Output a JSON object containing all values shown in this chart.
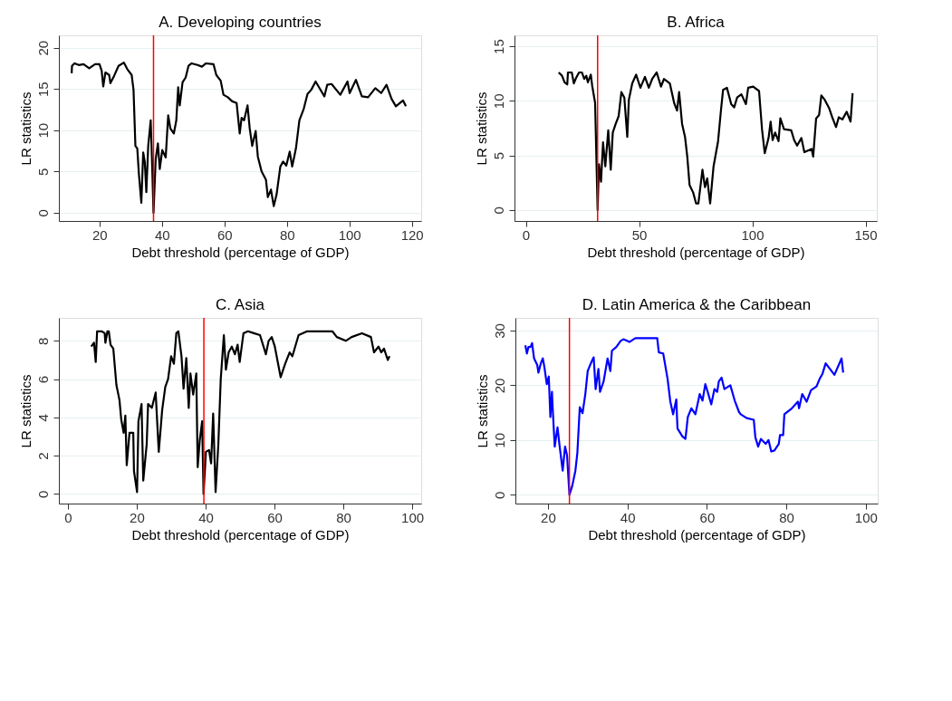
{
  "chart_data": [
    {
      "type": "line",
      "title": "A. Developing countries",
      "xlabel": "Debt threshold (percentage of GDP)",
      "ylabel": "LR statistics",
      "xlim": [
        7,
        123
      ],
      "ylim": [
        -1,
        21.5
      ],
      "xticks": [
        20,
        40,
        60,
        80,
        100,
        120
      ],
      "yticks": [
        0,
        5,
        10,
        15,
        20
      ],
      "grid": "y",
      "ref_lines": [
        {
          "axis": "x",
          "value": 37.3,
          "color": "#ff0000"
        }
      ],
      "series": [
        {
          "color": "#000000",
          "x": [
            11.1,
            11.2,
            12.0,
            13.4,
            14.9,
            16.7,
            18.6,
            20.0,
            20.7,
            21.2,
            21.9,
            23.1,
            23.5,
            24.7,
            26.1,
            27.8,
            28.9,
            30.3,
            30.9,
            31.5,
            32.1,
            32.6,
            33.4,
            34.0,
            34.5,
            35.0,
            35.6,
            36.4,
            36.8,
            37.3,
            38.0,
            38.7,
            39.3,
            40.1,
            41.2,
            42.0,
            42.7,
            43.8,
            44.6,
            45.2,
            45.7,
            46.6,
            47.6,
            48.5,
            49.5,
            51.4,
            52.8,
            54.1,
            56.5,
            57.4,
            58.8,
            59.7,
            61.1,
            62.5,
            63.9,
            64.9,
            65.5,
            66.3,
            67.4,
            68.1,
            68.9,
            70.0,
            70.7,
            71.9,
            73.3,
            73.9,
            74.9,
            75.8,
            76.7,
            77.9,
            78.8,
            79.8,
            80.9,
            81.7,
            82.9,
            84.0,
            85.4,
            86.6,
            87.8,
            89.2,
            90.6,
            92.0,
            92.9,
            94.3,
            97.1,
            99.4,
            100.1,
            102.1,
            104.0,
            106.0,
            108.3,
            110.2,
            111.9,
            113.5,
            114.9,
            117.2,
            118.1
          ],
          "values": [
            16.9,
            17.8,
            18.1,
            17.9,
            18.0,
            17.5,
            18.0,
            18.0,
            17.2,
            15.3,
            17.0,
            16.7,
            15.7,
            16.6,
            17.8,
            18.2,
            17.4,
            16.7,
            14.9,
            8.1,
            7.8,
            4.8,
            1.2,
            7.3,
            6.2,
            2.5,
            8.1,
            11.2,
            6.5,
            0,
            6.5,
            8.4,
            5.3,
            7.6,
            6.7,
            11.8,
            10.2,
            9.6,
            11.2,
            15.2,
            13.0,
            15.8,
            16.4,
            17.8,
            18.1,
            17.9,
            17.7,
            18.1,
            18.0,
            16.7,
            16.0,
            14.3,
            14.0,
            13.5,
            13.3,
            9.6,
            11.5,
            11.2,
            13.0,
            10.2,
            8.1,
            9.9,
            6.8,
            5.0,
            4.0,
            1.9,
            2.8,
            0.8,
            2.2,
            5.6,
            6.2,
            5.7,
            7.4,
            5.6,
            7.8,
            11.2,
            12.6,
            14.4,
            14.9,
            15.9,
            15.0,
            14.1,
            15.5,
            15.6,
            14.3,
            15.9,
            14.5,
            16.1,
            14.1,
            14.0,
            15.1,
            14.5,
            15.5,
            13.8,
            12.9,
            13.6,
            12.9
          ]
        }
      ]
    },
    {
      "type": "line",
      "title": "B. Africa",
      "xlabel": "Debt threshold (percentage of GDP)",
      "ylabel": "LR statistics",
      "xlim": [
        -5,
        155
      ],
      "ylim": [
        -1,
        16
      ],
      "xticks": [
        0,
        50,
        100,
        150
      ],
      "yticks": [
        0,
        5,
        10,
        15
      ],
      "grid": "y",
      "ref_lines": [
        {
          "axis": "x",
          "value": 31.7,
          "color": "#ff0000"
        }
      ],
      "series": [
        {
          "color": "#000000",
          "x": [
            14.5,
            16.0,
            17.1,
            18.3,
            18.6,
            20.3,
            21.2,
            22.2,
            23.5,
            24.8,
            25.8,
            26.7,
            27.4,
            28.7,
            29.3,
            30.6,
            31.7,
            32.3,
            33.2,
            34.1,
            35.1,
            36.4,
            37.5,
            38.4,
            39.7,
            41.0,
            42.2,
            43.5,
            44.8,
            45.5,
            47.0,
            48.7,
            50.6,
            52.6,
            54.3,
            55.8,
            57.8,
            59.7,
            61.0,
            63.6,
            65.5,
            66.8,
            67.7,
            69.0,
            70.3,
            71.3,
            72.3,
            73.9,
            75.2,
            76.2,
            78.0,
            79.1,
            80.1,
            81.4,
            82.9,
            84.9,
            86.2,
            87.1,
            88.8,
            90.7,
            92.0,
            93.3,
            95.2,
            97.2,
            98.2,
            100.4,
            103.0,
            104.3,
            105.5,
            107.2,
            108.1,
            109.0,
            110.1,
            111.6,
            112.4,
            114.0,
            117.2,
            118.5,
            119.8,
            121.7,
            123.0,
            126.2,
            126.9,
            128.2,
            129.5,
            130.5,
            132.0,
            134.0,
            135.3,
            137.0,
            138.2,
            139.8,
            141.7,
            143.4,
            144.3
          ],
          "values": [
            12.6,
            12.3,
            11.7,
            11.5,
            12.6,
            12.6,
            11.6,
            12.1,
            12.6,
            12.6,
            12.0,
            12.3,
            11.7,
            12.4,
            11.4,
            9.8,
            0,
            4.2,
            2.6,
            6.2,
            4.0,
            7.3,
            3.7,
            7.1,
            7.9,
            8.6,
            10.8,
            10.3,
            6.7,
            10.1,
            11.6,
            12.4,
            11.2,
            12.2,
            11.2,
            12.0,
            12.6,
            11.3,
            12.0,
            11.6,
            9.8,
            9.1,
            10.8,
            7.9,
            6.7,
            4.9,
            2.3,
            1.6,
            0.6,
            0.6,
            3.7,
            2.1,
            2.9,
            0.6,
            4.0,
            6.3,
            9.2,
            11.0,
            11.2,
            9.7,
            9.4,
            10.3,
            10.6,
            9.7,
            11.2,
            11.3,
            10.9,
            7.4,
            5.2,
            6.6,
            8.1,
            6.4,
            7.1,
            6.3,
            8.4,
            7.4,
            7.3,
            6.4,
            5.9,
            6.6,
            5.3,
            5.6,
            4.9,
            8.4,
            8.7,
            10.5,
            10.1,
            9.3,
            8.5,
            7.6,
            8.5,
            8.3,
            9.0,
            8.1,
            10.7
          ]
        }
      ]
    },
    {
      "type": "line",
      "title": "C. Asia",
      "xlabel": "Debt threshold (percentage of GDP)",
      "ylabel": "LR statistics",
      "xlim": [
        -2.6,
        102.6
      ],
      "ylim": [
        -0.5,
        9.2
      ],
      "xticks": [
        0,
        20,
        40,
        60,
        80,
        100
      ],
      "yticks": [
        0,
        2,
        4,
        6,
        8
      ],
      "grid": "y",
      "ref_lines": [
        {
          "axis": "x",
          "value": 39.5,
          "color": "#ff0000"
        }
      ],
      "series": [
        {
          "color": "#000000",
          "x": [
            6.8,
            7.6,
            8.1,
            8.5,
            9.8,
            10.7,
            10.9,
            11.5,
            11.9,
            12.4,
            13.2,
            14.1,
            15.0,
            15.5,
            16.2,
            16.7,
            17.1,
            17.9,
            19.0,
            19.2,
            20.1,
            20.5,
            21.4,
            21.9,
            22.9,
            23.3,
            24.4,
            25.5,
            26.4,
            27.4,
            28.3,
            29.1,
            30.0,
            30.8,
            31.5,
            32.1,
            33.0,
            33.6,
            34.4,
            35.1,
            35.6,
            36.4,
            37.3,
            37.7,
            38.3,
            39.0,
            39.4,
            40.1,
            41.0,
            41.6,
            42.2,
            42.9,
            43.7,
            44.4,
            45.3,
            45.9,
            46.7,
            47.6,
            48.5,
            49.3,
            49.9,
            51.0,
            52.3,
            54.0,
            55.8,
            57.5,
            58.3,
            59.2,
            60.1,
            61.8,
            63.1,
            64.4,
            65.2,
            67.0,
            69.5,
            72.9,
            76.8,
            78.1,
            80.7,
            82.4,
            85.4,
            88.0,
            88.9,
            90.2,
            91.0,
            91.8,
            92.9,
            93.4
          ],
          "values": [
            7.7,
            7.9,
            6.9,
            8.5,
            8.5,
            8.4,
            7.9,
            8.5,
            8.5,
            7.8,
            7.6,
            5.7,
            4.9,
            3.9,
            3.2,
            4.1,
            1.5,
            3.2,
            3.2,
            1.2,
            0.1,
            3.8,
            4.7,
            0.7,
            2.6,
            4.7,
            4.5,
            5.3,
            2.2,
            4.4,
            5.6,
            6.0,
            7.2,
            6.8,
            8.4,
            8.5,
            7.2,
            5.5,
            7.1,
            4.5,
            6.3,
            5.2,
            6.3,
            1.4,
            2.8,
            3.8,
            0,
            2.2,
            2.3,
            1.6,
            4.2,
            0.1,
            2.6,
            6.0,
            8.3,
            6.5,
            7.4,
            7.7,
            7.3,
            7.8,
            6.9,
            8.4,
            8.5,
            8.4,
            8.3,
            7.3,
            8.0,
            8.2,
            7.7,
            6.1,
            6.8,
            7.4,
            7.2,
            8.3,
            8.5,
            8.5,
            8.5,
            8.2,
            8.0,
            8.2,
            8.4,
            8.2,
            7.4,
            7.7,
            7.4,
            7.6,
            7.0,
            7.2
          ]
        }
      ]
    },
    {
      "type": "line",
      "title": "D. Latin America & the Caribbean",
      "xlabel": "Debt threshold (percentage of GDP)",
      "ylabel": "LR statistics",
      "xlim": [
        11.8,
        103
      ],
      "ylim": [
        -1.6,
        32.3
      ],
      "xticks": [
        20,
        40,
        60,
        80,
        100
      ],
      "yticks": [
        0,
        10,
        20,
        30
      ],
      "grid": "y",
      "ref_lines": [
        {
          "axis": "x",
          "value": 25.4,
          "color": "#ff0000"
        }
      ],
      "series": [
        {
          "color": "#0000ff",
          "x": [
            14.3,
            14.7,
            15.1,
            15.6,
            16.0,
            16.5,
            17.3,
            17.6,
            18.2,
            18.7,
            19.1,
            19.7,
            20.2,
            20.6,
            21.0,
            21.2,
            21.7,
            22.4,
            22.9,
            23.7,
            24.3,
            24.8,
            25.4,
            26.1,
            26.9,
            27.4,
            28.0,
            28.7,
            29.4,
            30.0,
            30.9,
            31.5,
            32.0,
            32.7,
            33.1,
            34.0,
            35.0,
            35.7,
            36.1,
            37.2,
            38.3,
            39.0,
            40.5,
            42.0,
            44.2,
            47.5,
            47.9,
            49.0,
            50.1,
            50.8,
            51.5,
            52.3,
            52.6,
            53.8,
            54.6,
            55.2,
            56.1,
            57.1,
            58.2,
            58.9,
            59.6,
            60.2,
            61.1,
            61.9,
            62.6,
            63.0,
            63.7,
            64.4,
            65.9,
            67.0,
            68.1,
            68.5,
            70.0,
            71.8,
            72.2,
            72.9,
            73.6,
            74.8,
            75.5,
            76.2,
            77.0,
            78.1,
            78.4,
            79.2,
            79.5,
            81.4,
            82.9,
            83.2,
            84.0,
            85.1,
            86.2,
            87.6,
            88.4,
            89.1,
            89.9,
            92.1,
            93.9,
            94.3
          ],
          "values": [
            27.3,
            25.8,
            27.0,
            27.0,
            27.7,
            24.9,
            23.7,
            22.3,
            24.0,
            24.9,
            23.3,
            20.2,
            21.6,
            14.2,
            18.8,
            15.6,
            8.8,
            12.3,
            9.1,
            4.4,
            8.8,
            7.2,
            0,
            1.6,
            4.4,
            7.7,
            16.0,
            14.9,
            18.4,
            22.6,
            24.2,
            25.1,
            19.3,
            23.0,
            18.8,
            20.7,
            24.9,
            22.6,
            26.3,
            27.0,
            28.1,
            28.4,
            27.9,
            28.6,
            28.6,
            28.6,
            26.0,
            25.8,
            21.2,
            17.0,
            14.7,
            17.4,
            12.1,
            10.7,
            10.2,
            14.2,
            15.8,
            14.7,
            18.4,
            17.2,
            20.2,
            18.8,
            16.5,
            19.3,
            18.8,
            20.7,
            21.4,
            19.3,
            20.0,
            17.2,
            15.1,
            14.7,
            14.0,
            13.7,
            10.5,
            8.8,
            10.2,
            9.3,
            10.0,
            7.9,
            8.1,
            9.3,
            10.9,
            10.9,
            14.7,
            15.8,
            17.0,
            15.8,
            18.4,
            17.0,
            19.1,
            19.8,
            21.2,
            22.1,
            24.0,
            21.9,
            24.9,
            22.3
          ]
        }
      ]
    }
  ]
}
